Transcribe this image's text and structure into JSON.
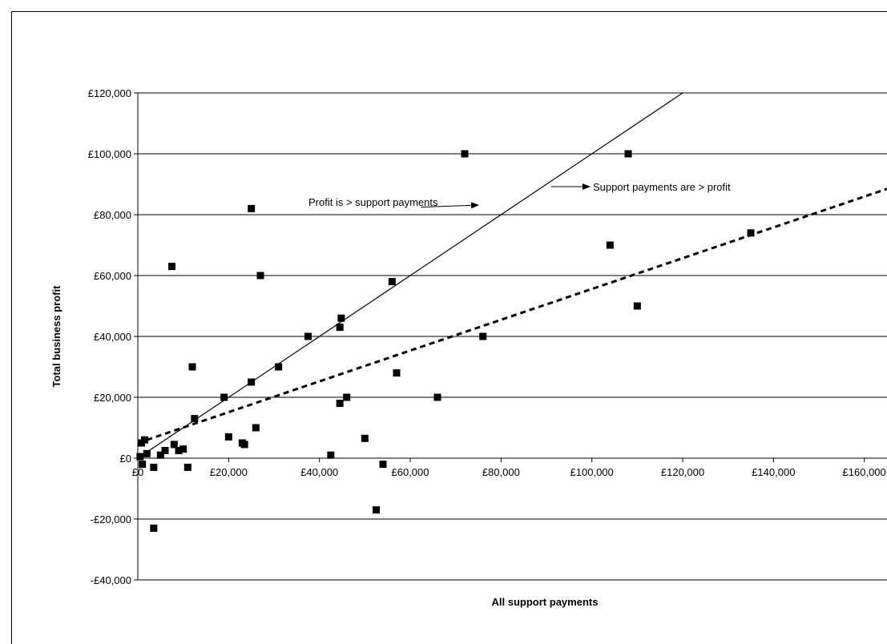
{
  "chart_data": {
    "type": "scatter",
    "xlabel": "All support payments",
    "ylabel": "Total business profit",
    "xlim": [
      0,
      165000
    ],
    "ylim": [
      -40000,
      120000
    ],
    "x_ticks": [
      {
        "value": 0,
        "label": "£0"
      },
      {
        "value": 20000,
        "label": "£20,000"
      },
      {
        "value": 40000,
        "label": "£40,000"
      },
      {
        "value": 60000,
        "label": "£60,000"
      },
      {
        "value": 80000,
        "label": "£80,000"
      },
      {
        "value": 100000,
        "label": "£100,000"
      },
      {
        "value": 120000,
        "label": "£120,000"
      },
      {
        "value": 140000,
        "label": "£140,000"
      },
      {
        "value": 160000,
        "label": "£160,000"
      }
    ],
    "y_ticks": [
      {
        "value": 120000,
        "label": "£120,000"
      },
      {
        "value": 100000,
        "label": "£100,000"
      },
      {
        "value": 80000,
        "label": "£80,000"
      },
      {
        "value": 60000,
        "label": "£60,000"
      },
      {
        "value": 40000,
        "label": "£40,000"
      },
      {
        "value": 20000,
        "label": "£20,000"
      },
      {
        "value": 0,
        "label": "£0"
      },
      {
        "value": -20000,
        "label": "-£20,000"
      },
      {
        "value": -40000,
        "label": "-£40,000"
      }
    ],
    "grid": "horizontal",
    "points": [
      [
        500,
        500
      ],
      [
        800,
        5000
      ],
      [
        1000,
        -2000
      ],
      [
        1500,
        6000
      ],
      [
        2000,
        1500
      ],
      [
        3500,
        -23000
      ],
      [
        3500,
        -3000
      ],
      [
        5000,
        1000
      ],
      [
        6000,
        2500
      ],
      [
        7500,
        63000
      ],
      [
        8000,
        4500
      ],
      [
        9000,
        2500
      ],
      [
        10000,
        3000
      ],
      [
        11000,
        -3000
      ],
      [
        12000,
        30000
      ],
      [
        12500,
        13000
      ],
      [
        19000,
        20000
      ],
      [
        20000,
        7000
      ],
      [
        23000,
        5000
      ],
      [
        23500,
        4500
      ],
      [
        25000,
        82000
      ],
      [
        25000,
        25000
      ],
      [
        26000,
        10000
      ],
      [
        27000,
        60000
      ],
      [
        31000,
        30000
      ],
      [
        37500,
        40000
      ],
      [
        42500,
        1000
      ],
      [
        44500,
        18000
      ],
      [
        44500,
        43000
      ],
      [
        44800,
        46000
      ],
      [
        46000,
        20000
      ],
      [
        50000,
        6500
      ],
      [
        52500,
        -17000
      ],
      [
        54000,
        -2000
      ],
      [
        56000,
        58000
      ],
      [
        57000,
        28000
      ],
      [
        66000,
        20000
      ],
      [
        72000,
        100000
      ],
      [
        76000,
        40000
      ],
      [
        104000,
        70000
      ],
      [
        108000,
        100000
      ],
      [
        110000,
        50000
      ],
      [
        135000,
        74000
      ]
    ],
    "reference_line": {
      "x": [
        0,
        125000
      ],
      "y": [
        0,
        125000
      ]
    },
    "trend_line": {
      "x": [
        0,
        170000
      ],
      "y": [
        5000,
        91000
      ]
    },
    "annotations": [
      {
        "text": "Profit is > support payments",
        "arrow_to": [
          62000,
          83000
        ]
      },
      {
        "text": "Support payments are > profit",
        "arrow_from": [
          91000,
          89000
        ]
      }
    ]
  }
}
